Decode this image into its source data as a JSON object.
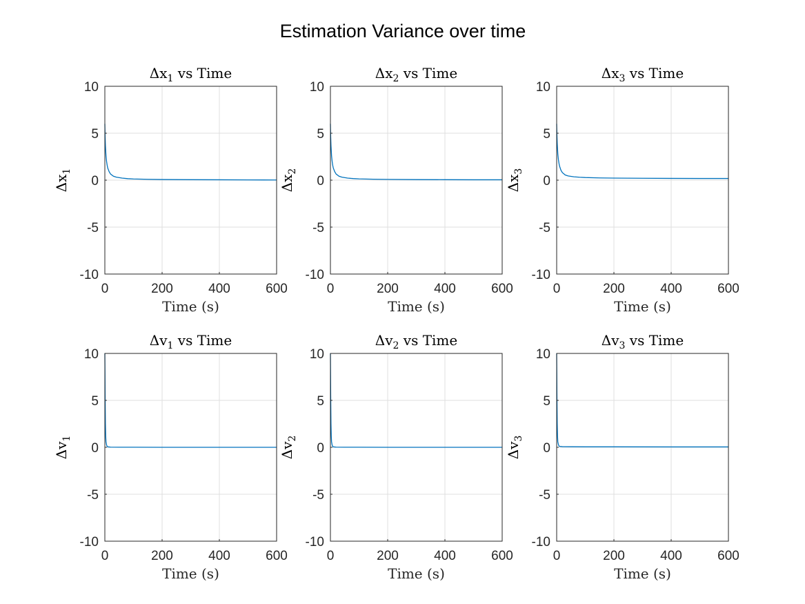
{
  "figure": {
    "suptitle": "Estimation Variance over time"
  },
  "chart_data": [
    {
      "type": "line",
      "title": {
        "prefix": "Δx",
        "sub": "1",
        "suffix": " vs Time"
      },
      "ylabel": {
        "prefix": "Δx",
        "sub": "1"
      },
      "xlabel": "Time (s)",
      "xlim": [
        0,
        600
      ],
      "ylim": [
        -10,
        10
      ],
      "xticks": [
        0,
        200,
        400,
        600
      ],
      "yticks": [
        -10,
        -5,
        0,
        5,
        10
      ],
      "grid": true,
      "series": [
        {
          "color": "#0072BD",
          "x": [
            0,
            1,
            2,
            4,
            6,
            8,
            10,
            15,
            20,
            30,
            40,
            60,
            80,
            100,
            150,
            200,
            300,
            400,
            500,
            600
          ],
          "values": [
            6.0,
            4.6,
            3.7,
            2.6,
            2.0,
            1.6,
            1.3,
            0.9,
            0.65,
            0.42,
            0.32,
            0.22,
            0.16,
            0.13,
            0.09,
            0.07,
            0.05,
            0.04,
            0.03,
            0.02
          ]
        }
      ]
    },
    {
      "type": "line",
      "title": {
        "prefix": "Δx",
        "sub": "2",
        "suffix": " vs Time"
      },
      "ylabel": {
        "prefix": "Δx",
        "sub": "2"
      },
      "xlabel": "Time (s)",
      "xlim": [
        0,
        600
      ],
      "ylim": [
        -10,
        10
      ],
      "xticks": [
        0,
        200,
        400,
        600
      ],
      "yticks": [
        -10,
        -5,
        0,
        5,
        10
      ],
      "grid": true,
      "series": [
        {
          "color": "#0072BD",
          "x": [
            0,
            1,
            2,
            4,
            6,
            8,
            10,
            15,
            20,
            30,
            40,
            60,
            80,
            100,
            150,
            200,
            300,
            400,
            500,
            600
          ],
          "values": [
            6.0,
            4.6,
            3.7,
            2.6,
            2.0,
            1.6,
            1.3,
            0.9,
            0.65,
            0.42,
            0.32,
            0.22,
            0.17,
            0.14,
            0.1,
            0.08,
            0.06,
            0.05,
            0.04,
            0.04
          ]
        }
      ]
    },
    {
      "type": "line",
      "title": {
        "prefix": "Δx",
        "sub": "3",
        "suffix": " vs Time"
      },
      "ylabel": {
        "prefix": "Δx",
        "sub": "3"
      },
      "xlabel": "Time (s)",
      "xlim": [
        0,
        600
      ],
      "ylim": [
        -10,
        10
      ],
      "xticks": [
        0,
        200,
        400,
        600
      ],
      "yticks": [
        -10,
        -5,
        0,
        5,
        10
      ],
      "grid": true,
      "series": [
        {
          "color": "#0072BD",
          "x": [
            0,
            1,
            2,
            4,
            6,
            8,
            10,
            15,
            20,
            30,
            40,
            60,
            80,
            100,
            150,
            200,
            300,
            400,
            500,
            600
          ],
          "values": [
            6.0,
            4.8,
            3.9,
            2.8,
            2.2,
            1.8,
            1.5,
            1.05,
            0.8,
            0.55,
            0.45,
            0.36,
            0.31,
            0.28,
            0.24,
            0.22,
            0.2,
            0.19,
            0.18,
            0.18
          ]
        }
      ]
    },
    {
      "type": "line",
      "title": {
        "prefix": "Δv",
        "sub": "1",
        "suffix": " vs Time"
      },
      "ylabel": {
        "prefix": "Δv",
        "sub": "1"
      },
      "xlabel": "Time (s)",
      "xlim": [
        0,
        600
      ],
      "ylim": [
        -10,
        10
      ],
      "xticks": [
        0,
        200,
        400,
        600
      ],
      "yticks": [
        -10,
        -5,
        0,
        5,
        10
      ],
      "grid": true,
      "series": [
        {
          "color": "#0072BD",
          "x": [
            0,
            0.5,
            1,
            2,
            3,
            4,
            6,
            8,
            10,
            20,
            50,
            100,
            200,
            400,
            600
          ],
          "values": [
            10.0,
            8.0,
            5.5,
            2.5,
            1.2,
            0.6,
            0.25,
            0.1,
            0.05,
            0.02,
            0.01,
            0.01,
            0.0,
            0.0,
            0.0
          ]
        }
      ]
    },
    {
      "type": "line",
      "title": {
        "prefix": "Δv",
        "sub": "2",
        "suffix": " vs Time"
      },
      "ylabel": {
        "prefix": "Δv",
        "sub": "2"
      },
      "xlabel": "Time (s)",
      "xlim": [
        0,
        600
      ],
      "ylim": [
        -10,
        10
      ],
      "xticks": [
        0,
        200,
        400,
        600
      ],
      "yticks": [
        -10,
        -5,
        0,
        5,
        10
      ],
      "grid": true,
      "series": [
        {
          "color": "#0072BD",
          "x": [
            0,
            0.5,
            1,
            2,
            3,
            4,
            6,
            8,
            10,
            20,
            50,
            100,
            200,
            400,
            600
          ],
          "values": [
            10.0,
            8.0,
            5.5,
            2.5,
            1.2,
            0.6,
            0.25,
            0.1,
            0.05,
            0.02,
            0.01,
            0.01,
            0.0,
            0.0,
            0.0
          ]
        }
      ]
    },
    {
      "type": "line",
      "title": {
        "prefix": "Δv",
        "sub": "3",
        "suffix": " vs Time"
      },
      "ylabel": {
        "prefix": "Δv",
        "sub": "3"
      },
      "xlabel": "Time (s)",
      "xlim": [
        0,
        600
      ],
      "ylim": [
        -10,
        10
      ],
      "xticks": [
        0,
        200,
        400,
        600
      ],
      "yticks": [
        -10,
        -5,
        0,
        5,
        10
      ],
      "grid": true,
      "series": [
        {
          "color": "#0072BD",
          "x": [
            0,
            0.5,
            1,
            2,
            3,
            4,
            6,
            8,
            10,
            20,
            50,
            100,
            200,
            400,
            600
          ],
          "values": [
            10.0,
            8.0,
            5.5,
            2.5,
            1.2,
            0.6,
            0.3,
            0.15,
            0.1,
            0.07,
            0.06,
            0.05,
            0.05,
            0.04,
            0.04
          ]
        }
      ]
    }
  ]
}
